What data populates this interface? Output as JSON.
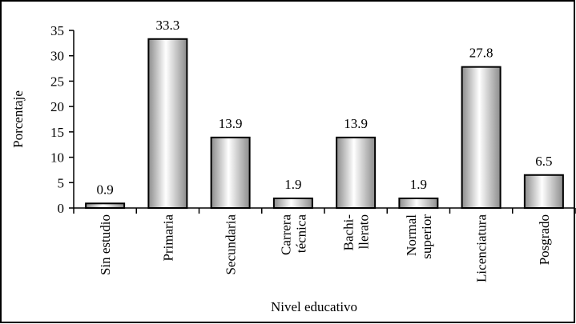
{
  "chart_data": {
    "type": "bar",
    "title": "",
    "xlabel": "Nivel educativo",
    "ylabel": "Porcentaje",
    "ylim": [
      0,
      35
    ],
    "yticks": [
      0,
      5,
      10,
      15,
      20,
      25,
      30,
      35
    ],
    "grid": false,
    "legend": "none",
    "categories": [
      [
        "Sin estudio"
      ],
      [
        "Primaria"
      ],
      [
        "Secundaria"
      ],
      [
        "Carrera",
        "técnica"
      ],
      [
        "Bachi-",
        "llerato"
      ],
      [
        "Normal",
        "superior"
      ],
      [
        "Licenciatura"
      ],
      [
        "Posgrado"
      ]
    ],
    "values": [
      0.9,
      33.3,
      13.9,
      1.9,
      13.9,
      1.9,
      27.8,
      6.5
    ],
    "value_labels": [
      "0.9",
      "33.3",
      "13.9",
      "1.9",
      "13.9",
      "1.9",
      "27.8",
      "6.5"
    ],
    "colors": {
      "bar_dark": "#8c8c8c",
      "bar_light": "#ffffff",
      "stroke": "#000000"
    }
  }
}
